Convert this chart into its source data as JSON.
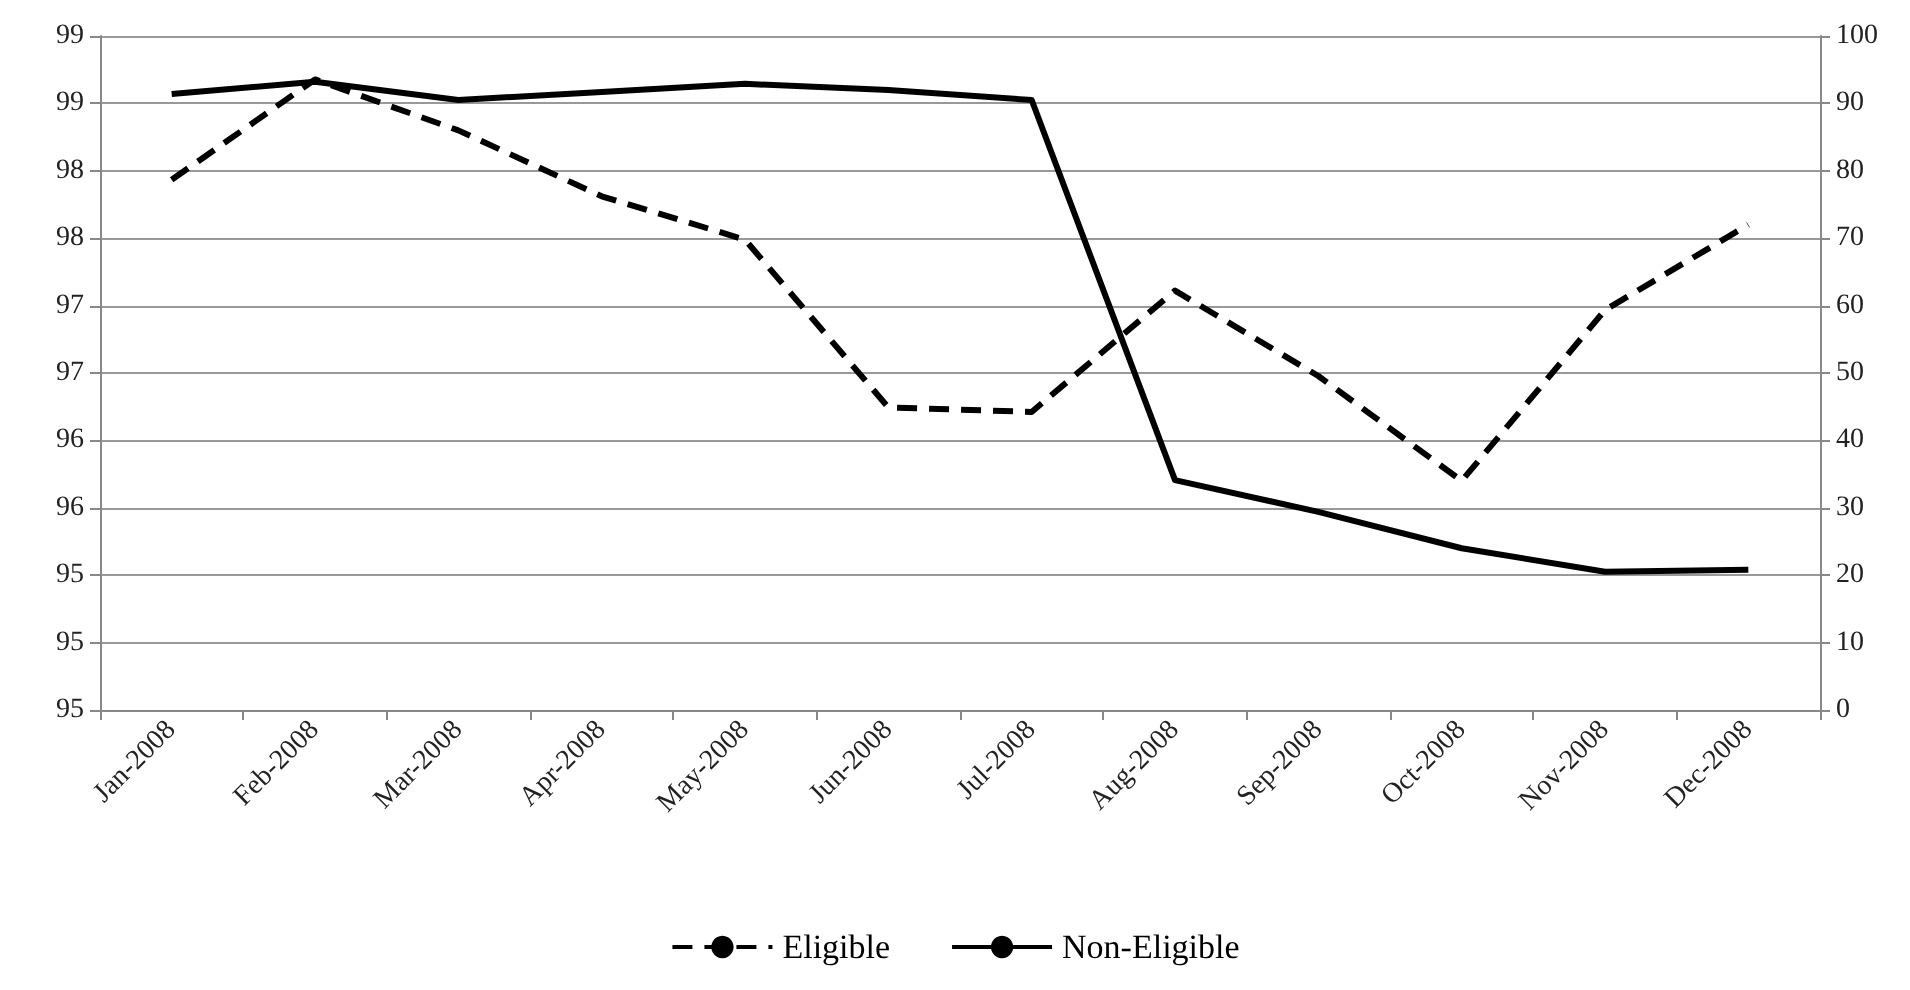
{
  "chart_data": {
    "type": "line",
    "categories": [
      "Jan-2008",
      "Feb-2008",
      "Mar-2008",
      "Apr-2008",
      "May-2008",
      "Jun-2008",
      "Jul-2008",
      "Aug-2008",
      "Sep-2008",
      "Oct-2008",
      "Nov-2008",
      "Dec-2008"
    ],
    "series": [
      {
        "name": "Eligible",
        "color": "#000000",
        "line_style": "dashed",
        "values": [
          98.04,
          98.71,
          98.37,
          97.93,
          97.64,
          96.52,
          96.49,
          97.3,
          96.73,
          96.03,
          97.17,
          97.74
        ]
      },
      {
        "name": "Non-Eligible",
        "color": "#000000",
        "line_style": "solid",
        "axis": "y2",
        "values": [
          91.4,
          93.2,
          90.5,
          91.7,
          92.9,
          92,
          90.5,
          34.1,
          29.4,
          24,
          20.5,
          20.8
        ]
      }
    ],
    "ylim": [
      94.5,
      99
    ],
    "yticks": [
      {
        "value": 94.5,
        "label": "95"
      },
      {
        "value": 94.95,
        "label": "95"
      },
      {
        "value": 95.4,
        "label": "95"
      },
      {
        "value": 95.85,
        "label": "96"
      },
      {
        "value": 96.3,
        "label": "96"
      },
      {
        "value": 96.75,
        "label": "97"
      },
      {
        "value": 97.2,
        "label": "97"
      },
      {
        "value": 97.65,
        "label": "98"
      },
      {
        "value": 98.1,
        "label": "98"
      },
      {
        "value": 98.55,
        "label": "99"
      },
      {
        "value": 99,
        "label": "99"
      }
    ],
    "y2lim": [
      0,
      100
    ],
    "y2ticks": [
      0,
      10,
      20,
      30,
      40,
      50,
      60,
      70,
      80,
      90,
      100
    ],
    "grid": "y",
    "legend": "bottom",
    "marker": "none"
  }
}
